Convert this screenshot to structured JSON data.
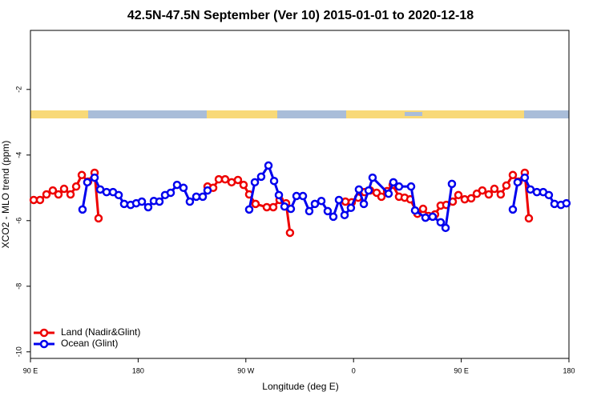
{
  "chart_data": {
    "type": "line",
    "title": "42.5N-47.5N September (Ver 10)   2015-01-01 to 2020-12-18",
    "x_label": "Longitude (deg E)",
    "y_label": "XCO2 - MLO trend (ppm)",
    "xlim": [
      90,
      540
    ],
    "ylim": [
      -10.2,
      -0.2
    ],
    "xticks": [
      {
        "value": 90,
        "label": "90 E"
      },
      180,
      {
        "value": 270,
        "label": "90 W"
      },
      {
        "value": 360,
        "label": "0"
      },
      {
        "value": 450,
        "label": "90 E"
      },
      {
        "value": 540,
        "label": "180"
      }
    ],
    "yticks": [
      -2,
      -4,
      -6,
      -8,
      -10
    ],
    "legend": "bottom left",
    "series": [
      {
        "name": "Land (Nadir&Glint)",
        "color": "#ee0000",
        "x": [
          92.7,
          98.0,
          103.4,
          108.7,
          113.4,
          118.1,
          123.5,
          128.2,
          132.9,
          138.2,
          143.6,
          146.9,
          null,
          238.0,
          242.7,
          247.4,
          252.7,
          258.1,
          263.4,
          268.1,
          272.8,
          278.1,
          287.5,
          292.9,
          298.2,
          303.6,
          306.9,
          null,
          353.2,
          358.5,
          363.9,
          369.2,
          373.9,
          379.3,
          383.3,
          388.0,
          392.7,
          398.0,
          402.7,
          407.4,
          413.4,
          418.1,
          422.8,
          428.1,
          432.8,
          437.5,
          442.9,
          447.6,
          452.9,
          458.3,
          463.0,
          467.6,
          473.0,
          477.7,
          483.0,
          487.7,
          493.1,
          497.8,
          503.1,
          506.5
        ],
        "values": [
          -5.37,
          -5.37,
          -5.2,
          -5.08,
          -5.2,
          -5.03,
          -5.2,
          -4.96,
          -4.61,
          -4.81,
          -4.54,
          -5.93,
          null,
          -4.96,
          -5.0,
          -4.74,
          -4.74,
          -4.83,
          -4.76,
          -4.91,
          -5.2,
          -5.49,
          -5.59,
          -5.59,
          -5.37,
          -5.47,
          -6.37,
          null,
          -5.42,
          -5.44,
          -5.3,
          -5.13,
          -5.08,
          -5.15,
          -5.27,
          -5.1,
          -4.91,
          -5.27,
          -5.3,
          -5.35,
          -5.79,
          -5.64,
          -5.86,
          -5.81,
          -5.54,
          -5.52,
          -5.42,
          -5.22,
          -5.35,
          -5.32,
          -5.18,
          -5.08,
          -5.2,
          -5.03,
          -5.2,
          -4.93,
          -4.61,
          -4.81,
          -4.54,
          -5.93
        ]
      },
      {
        "name": "Ocean (Glint)",
        "color": "#0000ee",
        "x": [
          133.5,
          137.5,
          143.6,
          148.3,
          153.6,
          159.0,
          163.7,
          168.3,
          173.7,
          178.4,
          183.1,
          188.4,
          193.1,
          197.8,
          202.5,
          207.2,
          212.5,
          217.9,
          223.2,
          228.6,
          234.0,
          238.0,
          null,
          272.8,
          277.5,
          282.8,
          288.9,
          293.6,
          297.6,
          302.3,
          307.6,
          312.3,
          317.7,
          323.0,
          327.7,
          333.1,
          338.4,
          343.1,
          347.8,
          352.5,
          357.8,
          364.5,
          368.6,
          372.6,
          375.9,
          389.3,
          393.3,
          398.0,
          408.1,
          411.4,
          420.1,
          426.1,
          432.8,
          436.9,
          442.2,
          null,
          493.1,
          497.1,
          503.1,
          507.8,
          513.2,
          518.5,
          523.2,
          527.9,
          533.3,
          537.9
        ],
        "values": [
          -5.66,
          -4.83,
          -4.69,
          -5.05,
          -5.13,
          -5.13,
          -5.22,
          -5.49,
          -5.52,
          -5.47,
          -5.42,
          -5.59,
          -5.4,
          -5.42,
          -5.22,
          -5.15,
          -4.91,
          -5.0,
          -5.42,
          -5.27,
          -5.27,
          -5.08,
          null,
          -5.66,
          -4.83,
          -4.66,
          -4.32,
          -4.79,
          -5.22,
          -5.57,
          -5.64,
          -5.25,
          -5.25,
          -5.71,
          -5.49,
          -5.4,
          -5.71,
          -5.88,
          -5.37,
          -5.83,
          -5.61,
          -5.05,
          -5.49,
          -5.08,
          -4.69,
          -5.18,
          -4.83,
          -4.96,
          -4.96,
          -5.69,
          -5.91,
          -5.88,
          -6.05,
          -6.22,
          -4.88,
          null,
          -5.66,
          -4.83,
          -4.69,
          -5.05,
          -5.13,
          -5.13,
          -5.22,
          -5.49,
          -5.52,
          -5.47
        ]
      }
    ]
  }
}
